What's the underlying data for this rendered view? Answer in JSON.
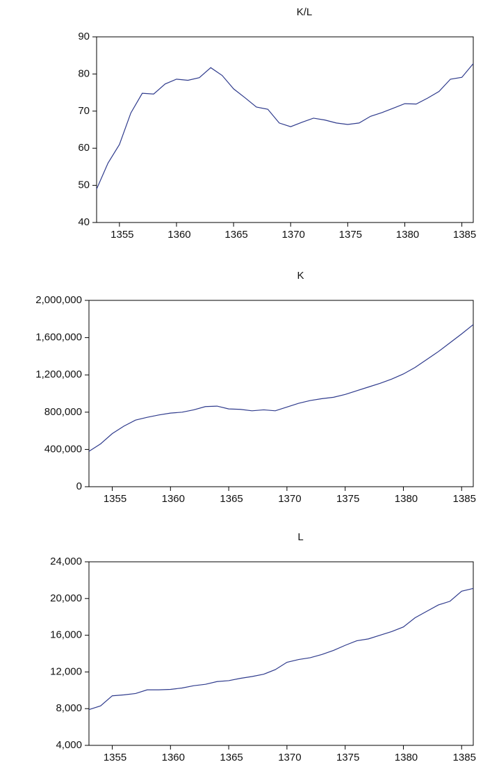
{
  "chart_data": [
    {
      "type": "line",
      "title": "K/L",
      "color": "#2e3a8c",
      "x": [
        1353,
        1354,
        1355,
        1356,
        1357,
        1358,
        1359,
        1360,
        1361,
        1362,
        1363,
        1364,
        1365,
        1366,
        1367,
        1368,
        1369,
        1370,
        1371,
        1372,
        1373,
        1374,
        1375,
        1376,
        1377,
        1378,
        1379,
        1380,
        1381,
        1382,
        1383,
        1384,
        1385,
        1386
      ],
      "values": [
        49,
        56,
        61,
        69.5,
        74.8,
        74.6,
        77.3,
        78.6,
        78.3,
        79,
        81.7,
        79.6,
        76,
        73.6,
        71.1,
        70.5,
        66.8,
        65.8,
        67,
        68.1,
        67.6,
        66.8,
        66.4,
        66.8,
        68.6,
        69.6,
        70.8,
        72,
        71.9,
        73.5,
        75.3,
        78.6,
        79.1,
        82.8
      ],
      "xlim": [
        1353,
        1386
      ],
      "xticks": [
        1355,
        1360,
        1365,
        1370,
        1375,
        1380,
        1385
      ],
      "ylim": [
        40,
        90
      ],
      "yticks": [
        40,
        50,
        60,
        70,
        80,
        90
      ],
      "grid": false
    },
    {
      "type": "line",
      "title": "K",
      "color": "#2e3a8c",
      "x": [
        1353,
        1354,
        1355,
        1356,
        1357,
        1358,
        1359,
        1360,
        1361,
        1362,
        1363,
        1364,
        1365,
        1366,
        1367,
        1368,
        1369,
        1370,
        1371,
        1372,
        1373,
        1374,
        1375,
        1376,
        1377,
        1378,
        1379,
        1380,
        1381,
        1382,
        1383,
        1384,
        1385,
        1386
      ],
      "values": [
        380000,
        460000,
        570000,
        650000,
        715000,
        745000,
        770000,
        790000,
        800000,
        825000,
        860000,
        865000,
        835000,
        830000,
        815000,
        825000,
        815000,
        855000,
        895000,
        925000,
        945000,
        960000,
        990000,
        1030000,
        1070000,
        1110000,
        1155000,
        1210000,
        1280000,
        1365000,
        1450000,
        1545000,
        1640000,
        1740000
      ],
      "xlim": [
        1353,
        1386
      ],
      "xticks": [
        1355,
        1360,
        1365,
        1370,
        1375,
        1380,
        1385
      ],
      "ylim": [
        0,
        2000000
      ],
      "yticks": [
        0,
        {
          "value": 400000,
          "label": "400,000"
        },
        {
          "value": 800000,
          "label": "800,000"
        },
        {
          "value": 1200000,
          "label": "1,200,000"
        },
        {
          "value": 1600000,
          "label": "1,600,000"
        },
        {
          "value": 2000000,
          "label": "2,000,000"
        }
      ],
      "grid": false
    },
    {
      "type": "line",
      "title": "L",
      "color": "#2e3a8c",
      "x": [
        1353,
        1354,
        1355,
        1356,
        1357,
        1358,
        1359,
        1360,
        1361,
        1362,
        1363,
        1364,
        1365,
        1366,
        1367,
        1368,
        1369,
        1370,
        1371,
        1372,
        1373,
        1374,
        1375,
        1376,
        1377,
        1378,
        1379,
        1380,
        1381,
        1382,
        1383,
        1384,
        1385,
        1386
      ],
      "values": [
        7900,
        8300,
        9400,
        9500,
        9650,
        10050,
        10050,
        10100,
        10250,
        10500,
        10650,
        10950,
        11050,
        11300,
        11500,
        11750,
        12250,
        13050,
        13350,
        13550,
        13900,
        14350,
        14900,
        15400,
        15600,
        16000,
        16400,
        16900,
        17900,
        18600,
        19300,
        19700,
        20800,
        21100
      ],
      "xlim": [
        1353,
        1386
      ],
      "xticks": [
        1355,
        1360,
        1365,
        1370,
        1375,
        1380,
        1385
      ],
      "ylim": [
        4000,
        24000
      ],
      "yticks": [
        {
          "value": 4000,
          "label": "4,000"
        },
        {
          "value": 8000,
          "label": "8,000"
        },
        {
          "value": 12000,
          "label": "12,000"
        },
        {
          "value": 16000,
          "label": "16,000"
        },
        {
          "value": 20000,
          "label": "20,000"
        },
        {
          "value": 24000,
          "label": "24,000"
        }
      ],
      "grid": false
    }
  ]
}
